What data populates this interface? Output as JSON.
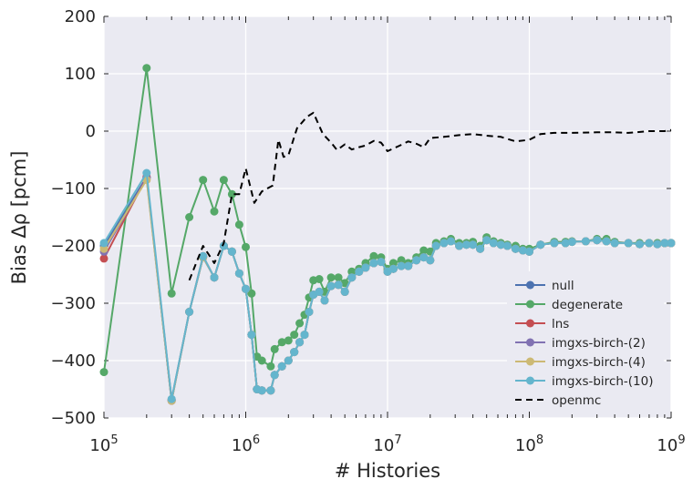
{
  "chart_data": {
    "type": "line",
    "xscale": "log",
    "xlim": [
      100000,
      1000000000
    ],
    "ylim": [
      -500,
      200
    ],
    "xlabel": "# Histories",
    "ylabel": "Bias Δρ [pcm]",
    "grid": true,
    "legend_position": "lower-right",
    "x_ticks": [
      {
        "value": 100000,
        "base": "10",
        "exp": "5"
      },
      {
        "value": 1000000,
        "base": "10",
        "exp": "6"
      },
      {
        "value": 10000000,
        "base": "10",
        "exp": "7"
      },
      {
        "value": 100000000,
        "base": "10",
        "exp": "8"
      },
      {
        "value": 1000000000,
        "base": "10",
        "exp": "9"
      }
    ],
    "y_ticks": [
      {
        "value": 200,
        "label": "200"
      },
      {
        "value": 100,
        "label": "100"
      },
      {
        "value": 0,
        "label": "0"
      },
      {
        "value": -100,
        "label": "−100"
      },
      {
        "value": -200,
        "label": "−200"
      },
      {
        "value": -300,
        "label": "−300"
      },
      {
        "value": -400,
        "label": "−400"
      },
      {
        "value": -500,
        "label": "−500"
      }
    ],
    "x": [
      100000,
      200000,
      300000,
      400000,
      500000,
      600000,
      700000,
      800000,
      900000,
      1000000,
      1100000,
      1200000,
      1300000,
      1500000,
      1600000,
      1800000,
      2000000,
      2200000,
      2400000,
      2600000,
      2800000,
      3000000,
      3300000,
      3600000,
      4000000,
      4500000,
      5000000,
      5600000,
      6300000,
      7000000,
      8000000,
      9000000,
      10000000,
      11000000,
      12500000,
      14000000,
      16000000,
      18000000,
      20000000,
      22000000,
      25000000,
      28000000,
      32000000,
      36000000,
      40000000,
      45000000,
      50000000,
      56000000,
      63000000,
      70000000,
      80000000,
      90000000,
      100000000,
      120000000,
      150000000,
      180000000,
      200000000,
      250000000,
      300000000,
      350000000,
      400000000,
      500000000,
      600000000,
      700000000,
      800000000,
      900000000,
      1000000000
    ],
    "series": [
      {
        "name": "null",
        "color": "#4c72b0",
        "marker": true,
        "dashed": false,
        "values": [
          -200,
          -80,
          -470,
          -315,
          -220,
          -255,
          -200,
          -210,
          -248,
          -275,
          -355,
          -450,
          -452,
          -452,
          -425,
          -410,
          -400,
          -385,
          -368,
          -355,
          -315,
          -285,
          -280,
          -295,
          -270,
          -268,
          -280,
          -255,
          -245,
          -238,
          -230,
          -228,
          -245,
          -240,
          -235,
          -235,
          -225,
          -220,
          -225,
          -200,
          -195,
          -192,
          -200,
          -198,
          -198,
          -205,
          -190,
          -195,
          -198,
          -200,
          -205,
          -208,
          -210,
          -198,
          -195,
          -195,
          -193,
          -192,
          -190,
          -192,
          -195,
          -195,
          -197,
          -195,
          -197,
          -195,
          -195
        ]
      },
      {
        "name": "degenerate",
        "color": "#55a868",
        "marker": true,
        "dashed": false,
        "values": [
          -420,
          110,
          -283,
          -150,
          -85,
          -140,
          -85,
          -110,
          -163,
          -202,
          -283,
          -393,
          -400,
          -410,
          -380,
          -368,
          -365,
          -355,
          -335,
          -320,
          -290,
          -260,
          -258,
          -280,
          -255,
          -255,
          -265,
          -245,
          -240,
          -230,
          -218,
          -220,
          -240,
          -230,
          -225,
          -230,
          -220,
          -208,
          -210,
          -195,
          -192,
          -188,
          -195,
          -195,
          -193,
          -200,
          -185,
          -192,
          -195,
          -198,
          -200,
          -205,
          -205,
          -198,
          -193,
          -193,
          -192,
          -192,
          -188,
          -188,
          -193,
          -195,
          -195,
          -195,
          -195,
          -195,
          -195
        ]
      },
      {
        "name": "lns",
        "color": "#c44e52",
        "marker": true,
        "dashed": false,
        "values": [
          -222,
          -80,
          -468,
          -315,
          -218,
          -255,
          -200,
          -210,
          -248,
          -275,
          -355,
          -450,
          -452,
          -452,
          -425,
          -410,
          -400,
          -385,
          -368,
          -355,
          -315,
          -285,
          -280,
          -295,
          -270,
          -268,
          -280,
          -255,
          -245,
          -238,
          -230,
          -228,
          -245,
          -240,
          -235,
          -235,
          -225,
          -220,
          -225,
          -200,
          -195,
          -192,
          -200,
          -198,
          -198,
          -205,
          -190,
          -195,
          -198,
          -200,
          -205,
          -208,
          -210,
          -198,
          -195,
          -195,
          -193,
          -192,
          -190,
          -192,
          -195,
          -195,
          -197,
          -195,
          -197,
          -195,
          -195
        ]
      },
      {
        "name": "imgxs-birch-(2)",
        "color": "#8172b2",
        "marker": true,
        "dashed": false,
        "values": [
          -210,
          -82,
          -470,
          -315,
          -220,
          -255,
          -200,
          -210,
          -248,
          -275,
          -355,
          -450,
          -452,
          -452,
          -425,
          -410,
          -400,
          -385,
          -368,
          -355,
          -315,
          -285,
          -280,
          -295,
          -270,
          -268,
          -280,
          -255,
          -245,
          -238,
          -230,
          -228,
          -245,
          -240,
          -235,
          -235,
          -225,
          -220,
          -225,
          -200,
          -195,
          -192,
          -200,
          -198,
          -198,
          -205,
          -190,
          -195,
          -198,
          -200,
          -205,
          -208,
          -210,
          -198,
          -195,
          -195,
          -193,
          -192,
          -190,
          -192,
          -195,
          -195,
          -197,
          -195,
          -197,
          -195,
          -195
        ]
      },
      {
        "name": "imgxs-birch-(4)",
        "color": "#ccb974",
        "marker": true,
        "dashed": false,
        "values": [
          -205,
          -85,
          -470,
          -315,
          -220,
          -255,
          -200,
          -210,
          -248,
          -275,
          -355,
          -450,
          -452,
          -452,
          -425,
          -410,
          -400,
          -385,
          -368,
          -355,
          -315,
          -285,
          -280,
          -295,
          -270,
          -268,
          -280,
          -255,
          -245,
          -238,
          -230,
          -228,
          -245,
          -240,
          -235,
          -235,
          -225,
          -220,
          -225,
          -200,
          -195,
          -192,
          -200,
          -198,
          -198,
          -205,
          -190,
          -195,
          -198,
          -200,
          -205,
          -208,
          -210,
          -198,
          -195,
          -195,
          -193,
          -192,
          -190,
          -192,
          -195,
          -195,
          -197,
          -195,
          -197,
          -195,
          -195
        ]
      },
      {
        "name": "imgxs-birch-(10)",
        "color": "#64b5cd",
        "marker": true,
        "dashed": false,
        "values": [
          -195,
          -73,
          -467,
          -315,
          -218,
          -255,
          -200,
          -210,
          -248,
          -275,
          -355,
          -450,
          -452,
          -452,
          -425,
          -410,
          -400,
          -385,
          -368,
          -355,
          -315,
          -285,
          -280,
          -295,
          -270,
          -268,
          -280,
          -255,
          -245,
          -238,
          -230,
          -228,
          -245,
          -240,
          -235,
          -235,
          -225,
          -220,
          -225,
          -200,
          -195,
          -192,
          -200,
          -198,
          -198,
          -205,
          -190,
          -195,
          -198,
          -200,
          -205,
          -208,
          -210,
          -198,
          -195,
          -195,
          -193,
          -192,
          -190,
          -192,
          -195,
          -195,
          -197,
          -195,
          -197,
          -195,
          -195
        ]
      },
      {
        "name": "openmc",
        "color": "#000000",
        "marker": false,
        "dashed": true,
        "points": [
          [
            400000,
            -260
          ],
          [
            500000,
            -200
          ],
          [
            600000,
            -230
          ],
          [
            700000,
            -195
          ],
          [
            800000,
            -110
          ],
          [
            900000,
            -110
          ],
          [
            1000000,
            -65
          ],
          [
            1150000,
            -125
          ],
          [
            1300000,
            -105
          ],
          [
            1550000,
            -95
          ],
          [
            1700000,
            -15
          ],
          [
            1850000,
            -45
          ],
          [
            2000000,
            -42
          ],
          [
            2300000,
            5
          ],
          [
            2700000,
            25
          ],
          [
            3000000,
            32
          ],
          [
            3500000,
            -5
          ],
          [
            4000000,
            -20
          ],
          [
            4400000,
            -33
          ],
          [
            5000000,
            -23
          ],
          [
            5600000,
            -32
          ],
          [
            6300000,
            -28
          ],
          [
            7000000,
            -25
          ],
          [
            8000000,
            -17
          ],
          [
            9000000,
            -20
          ],
          [
            10000000,
            -35
          ],
          [
            12000000,
            -26
          ],
          [
            14000000,
            -18
          ],
          [
            16000000,
            -22
          ],
          [
            18000000,
            -28
          ],
          [
            20000000,
            -12
          ],
          [
            25000000,
            -10
          ],
          [
            32000000,
            -7
          ],
          [
            40000000,
            -5
          ],
          [
            50000000,
            -8
          ],
          [
            63000000,
            -10
          ],
          [
            80000000,
            -18
          ],
          [
            100000000,
            -15
          ],
          [
            120000000,
            -5
          ],
          [
            150000000,
            -3
          ],
          [
            200000000,
            -3
          ],
          [
            300000000,
            -2
          ],
          [
            400000000,
            -2
          ],
          [
            500000000,
            -3
          ],
          [
            700000000,
            0
          ],
          [
            900000000,
            0
          ],
          [
            1000000000,
            2
          ]
        ]
      }
    ]
  }
}
